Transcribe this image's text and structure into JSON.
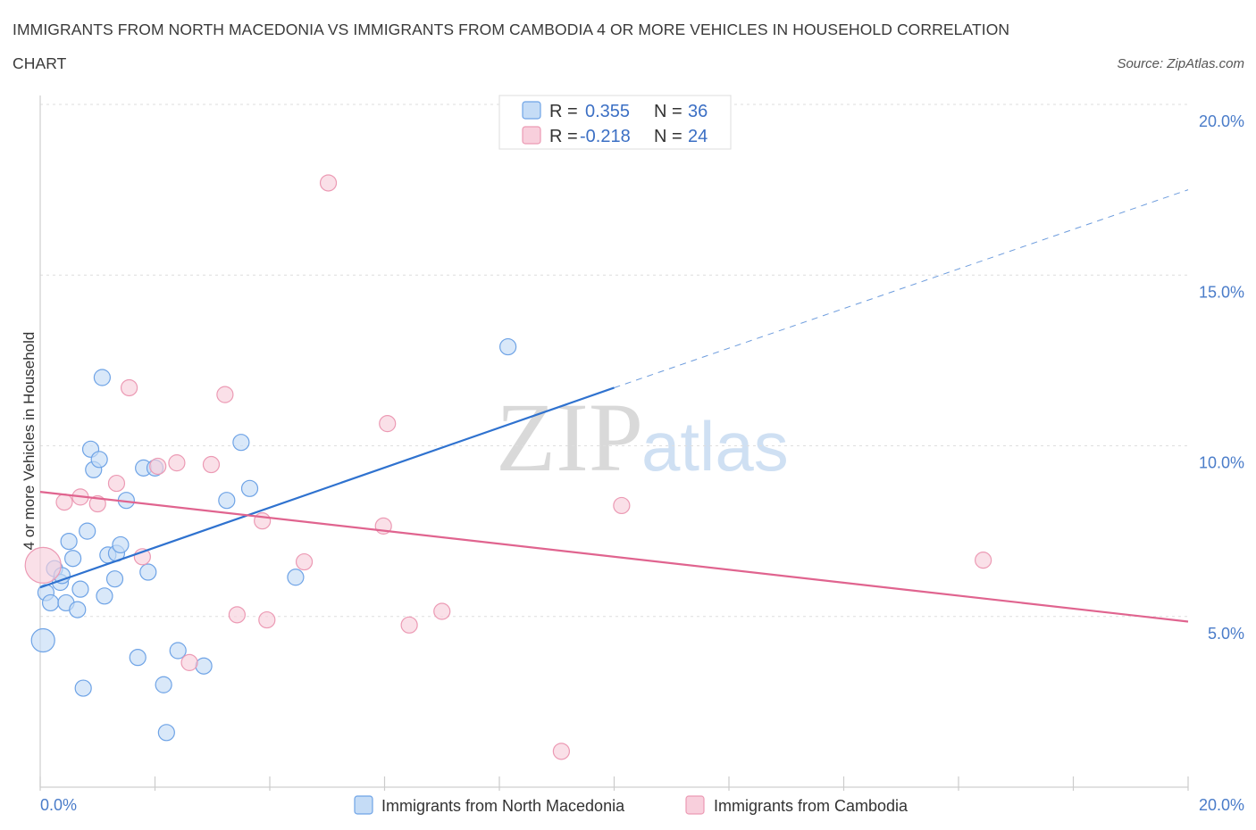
{
  "chart_data": {
    "type": "scatter",
    "title": "IMMIGRANTS FROM NORTH MACEDONIA VS IMMIGRANTS FROM CAMBODIA 4 OR MORE VEHICLES IN HOUSEHOLD CORRELATION CHART",
    "title_line1": "IMMIGRANTS FROM NORTH MACEDONIA VS IMMIGRANTS FROM CAMBODIA 4 OR MORE VEHICLES IN HOUSEHOLD CORRELATION",
    "title_line2": "CHART",
    "source": "Source: ZipAtlas.com",
    "ylabel": "4 or more Vehicles in Household",
    "xlabel": "",
    "xlim": [
      0,
      20
    ],
    "ylim": [
      0,
      20
    ],
    "x_tick_labels": [
      "0.0%",
      "20.0%"
    ],
    "y_ticks": [
      5,
      10,
      15,
      20
    ],
    "y_tick_labels": [
      "5.0%",
      "10.0%",
      "15.0%",
      "20.0%"
    ],
    "grid": true,
    "watermark": {
      "zip": "ZIP",
      "atlas": "atlas"
    },
    "legend": {
      "placement": "top-center",
      "entries": [
        {
          "r_label": "R =",
          "r_value": "0.355",
          "n_label": "N =",
          "n_value": "36"
        },
        {
          "r_label": "R =",
          "r_value": "-0.218",
          "n_label": "N =",
          "n_value": "24"
        }
      ]
    },
    "series": [
      {
        "name": "Immigrants from North Macedonia",
        "color": "#6ea3e6",
        "fill": "#c5dcf6",
        "line_color": "#2f72cf",
        "trend": {
          "x0": 0.0,
          "y0": 5.85,
          "x1": 10.0,
          "y1": 11.7,
          "x_dash_end": 20.0,
          "y_dash_end": 17.5
        },
        "points": [
          {
            "x": 0.05,
            "y": 4.3,
            "r": 13
          },
          {
            "x": 0.1,
            "y": 5.7,
            "r": 9
          },
          {
            "x": 0.18,
            "y": 5.4,
            "r": 9
          },
          {
            "x": 0.25,
            "y": 6.4,
            "r": 9
          },
          {
            "x": 0.35,
            "y": 6.0,
            "r": 9
          },
          {
            "x": 0.38,
            "y": 6.2,
            "r": 9
          },
          {
            "x": 0.45,
            "y": 5.4,
            "r": 9
          },
          {
            "x": 0.5,
            "y": 7.2,
            "r": 9
          },
          {
            "x": 0.57,
            "y": 6.7,
            "r": 9
          },
          {
            "x": 0.65,
            "y": 5.2,
            "r": 9
          },
          {
            "x": 0.7,
            "y": 5.8,
            "r": 9
          },
          {
            "x": 0.75,
            "y": 2.9,
            "r": 9
          },
          {
            "x": 0.82,
            "y": 7.5,
            "r": 9
          },
          {
            "x": 0.88,
            "y": 9.9,
            "r": 9
          },
          {
            "x": 0.93,
            "y": 9.3,
            "r": 9
          },
          {
            "x": 1.03,
            "y": 9.6,
            "r": 9
          },
          {
            "x": 1.08,
            "y": 12.0,
            "r": 9
          },
          {
            "x": 1.12,
            "y": 5.6,
            "r": 9
          },
          {
            "x": 1.18,
            "y": 6.8,
            "r": 9
          },
          {
            "x": 1.3,
            "y": 6.1,
            "r": 9
          },
          {
            "x": 1.33,
            "y": 6.85,
            "r": 9
          },
          {
            "x": 1.4,
            "y": 7.1,
            "r": 9
          },
          {
            "x": 1.5,
            "y": 8.4,
            "r": 9
          },
          {
            "x": 1.7,
            "y": 3.8,
            "r": 9
          },
          {
            "x": 1.8,
            "y": 9.35,
            "r": 9
          },
          {
            "x": 1.88,
            "y": 6.3,
            "r": 9
          },
          {
            "x": 2.0,
            "y": 9.35,
            "r": 9
          },
          {
            "x": 2.15,
            "y": 3.0,
            "r": 9
          },
          {
            "x": 2.2,
            "y": 1.6,
            "r": 9
          },
          {
            "x": 2.4,
            "y": 4.0,
            "r": 9
          },
          {
            "x": 2.85,
            "y": 3.55,
            "r": 9
          },
          {
            "x": 3.25,
            "y": 8.4,
            "r": 9
          },
          {
            "x": 3.5,
            "y": 10.1,
            "r": 9
          },
          {
            "x": 3.65,
            "y": 8.75,
            "r": 9
          },
          {
            "x": 4.45,
            "y": 6.15,
            "r": 9
          },
          {
            "x": 8.15,
            "y": 12.9,
            "r": 9
          }
        ]
      },
      {
        "name": "Immigrants from Cambodia",
        "color": "#ec9ab4",
        "fill": "#f8cfdc",
        "line_color": "#e0648f",
        "trend": {
          "x0": 0.0,
          "y0": 8.65,
          "x1": 20.0,
          "y1": 4.85
        },
        "points": [
          {
            "x": 0.05,
            "y": 6.5,
            "r": 20
          },
          {
            "x": 0.42,
            "y": 8.35,
            "r": 9
          },
          {
            "x": 0.7,
            "y": 8.5,
            "r": 9
          },
          {
            "x": 1.0,
            "y": 8.3,
            "r": 9
          },
          {
            "x": 1.33,
            "y": 8.9,
            "r": 9
          },
          {
            "x": 1.55,
            "y": 11.7,
            "r": 9
          },
          {
            "x": 1.78,
            "y": 6.75,
            "r": 9
          },
          {
            "x": 2.05,
            "y": 9.4,
            "r": 9
          },
          {
            "x": 2.38,
            "y": 9.5,
            "r": 9
          },
          {
            "x": 2.6,
            "y": 3.65,
            "r": 9
          },
          {
            "x": 2.98,
            "y": 9.45,
            "r": 9
          },
          {
            "x": 3.22,
            "y": 11.5,
            "r": 9
          },
          {
            "x": 3.43,
            "y": 5.05,
            "r": 9
          },
          {
            "x": 3.87,
            "y": 7.8,
            "r": 9
          },
          {
            "x": 3.95,
            "y": 4.9,
            "r": 9
          },
          {
            "x": 4.6,
            "y": 6.6,
            "r": 9
          },
          {
            "x": 5.02,
            "y": 17.7,
            "r": 9
          },
          {
            "x": 5.98,
            "y": 7.65,
            "r": 9
          },
          {
            "x": 6.05,
            "y": 10.65,
            "r": 9
          },
          {
            "x": 6.43,
            "y": 4.75,
            "r": 9
          },
          {
            "x": 7.0,
            "y": 5.15,
            "r": 9
          },
          {
            "x": 9.08,
            "y": 1.05,
            "r": 9
          },
          {
            "x": 10.13,
            "y": 8.25,
            "r": 9
          },
          {
            "x": 16.43,
            "y": 6.65,
            "r": 9
          }
        ]
      }
    ]
  }
}
